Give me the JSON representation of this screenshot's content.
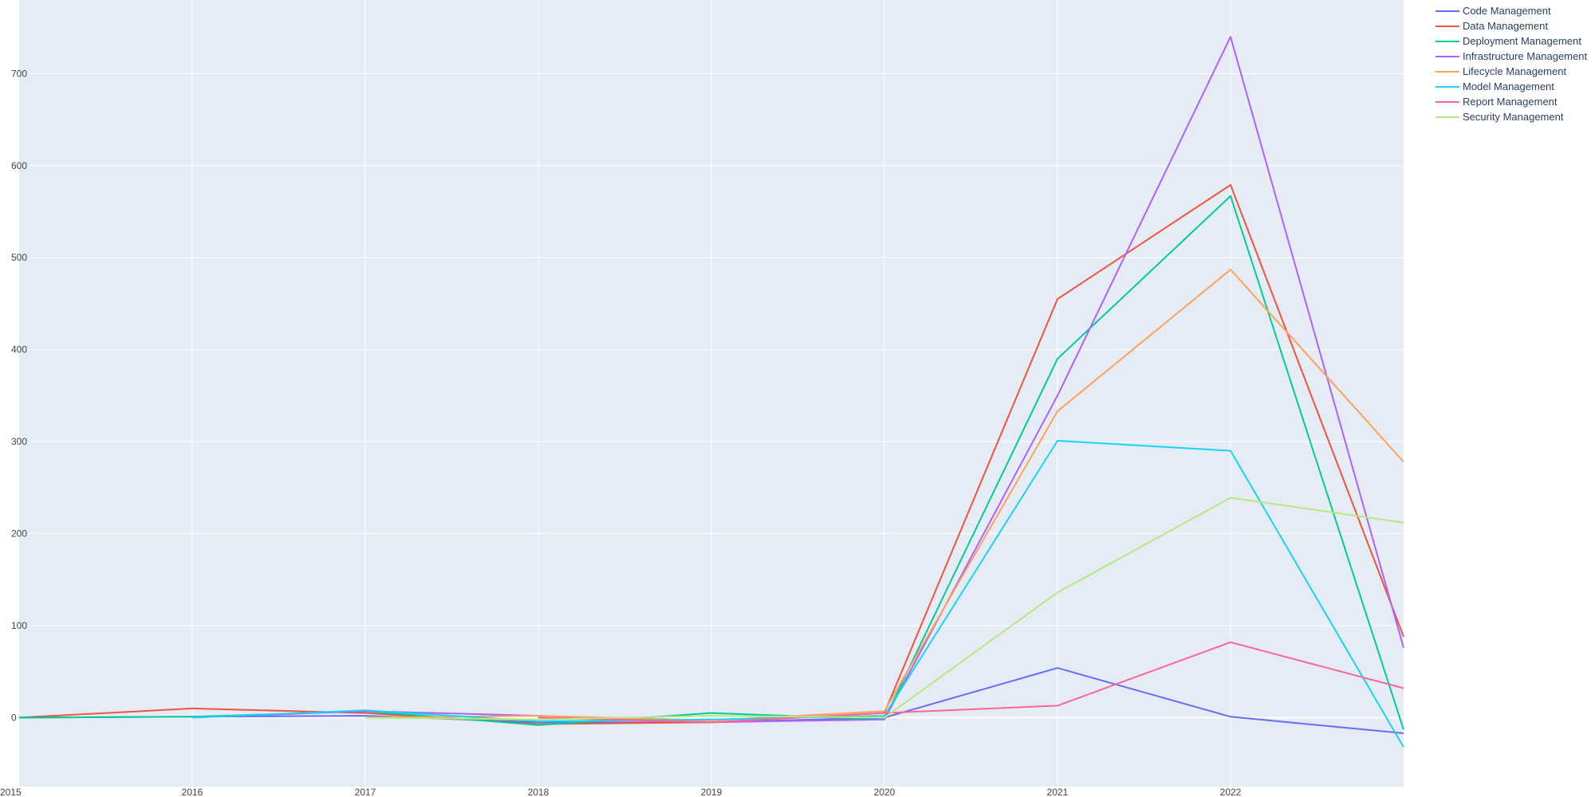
{
  "chart_data": {
    "type": "line",
    "title": "",
    "xlabel": "",
    "ylabel": "",
    "x": [
      2015,
      2016,
      2017,
      2018,
      2019,
      2020,
      2021,
      2022,
      2023
    ],
    "xlim": [
      2015,
      2023
    ],
    "ylim": [
      -75,
      780
    ],
    "x_ticks": [
      "2015",
      "2016",
      "2017",
      "2018",
      "2019",
      "2020",
      "2021",
      "2022"
    ],
    "y_ticks": [
      "0",
      "100",
      "200",
      "300",
      "400",
      "500",
      "600",
      "700"
    ],
    "grid": true,
    "legend_position": "top-right",
    "plot_background": "#e5ecf6",
    "series": [
      {
        "name": "Code Management",
        "color": "#636efa",
        "values": [
          0,
          1,
          2,
          -5,
          -5,
          0,
          54,
          1,
          -17
        ]
      },
      {
        "name": "Data Management",
        "color": "#EF553B",
        "values": [
          0,
          10,
          5,
          -7,
          -5,
          5,
          455,
          579,
          88
        ]
      },
      {
        "name": "Deployment Management",
        "color": "#00cc96",
        "values": [
          0,
          1,
          7,
          -8,
          5,
          -2,
          390,
          567,
          -13
        ]
      },
      {
        "name": "Infrastructure Management",
        "color": "#ab63fa",
        "values": [
          null,
          0,
          7,
          2,
          -5,
          -2,
          350,
          740,
          76
        ]
      },
      {
        "name": "Lifecycle Management",
        "color": "#FFA15A",
        "values": [
          null,
          null,
          0,
          2,
          -3,
          7,
          333,
          487,
          278
        ]
      },
      {
        "name": "Model Management",
        "color": "#19d3f3",
        "values": [
          null,
          0,
          8,
          -4,
          -2,
          2,
          301,
          290,
          -32
        ]
      },
      {
        "name": "Report Management",
        "color": "#FF6692",
        "values": [
          null,
          null,
          null,
          0,
          -5,
          5,
          13,
          82,
          32
        ]
      },
      {
        "name": "Security Management",
        "color": "#B6E880",
        "values": [
          null,
          null,
          0,
          -2,
          2,
          0,
          136,
          239,
          212
        ]
      }
    ]
  }
}
